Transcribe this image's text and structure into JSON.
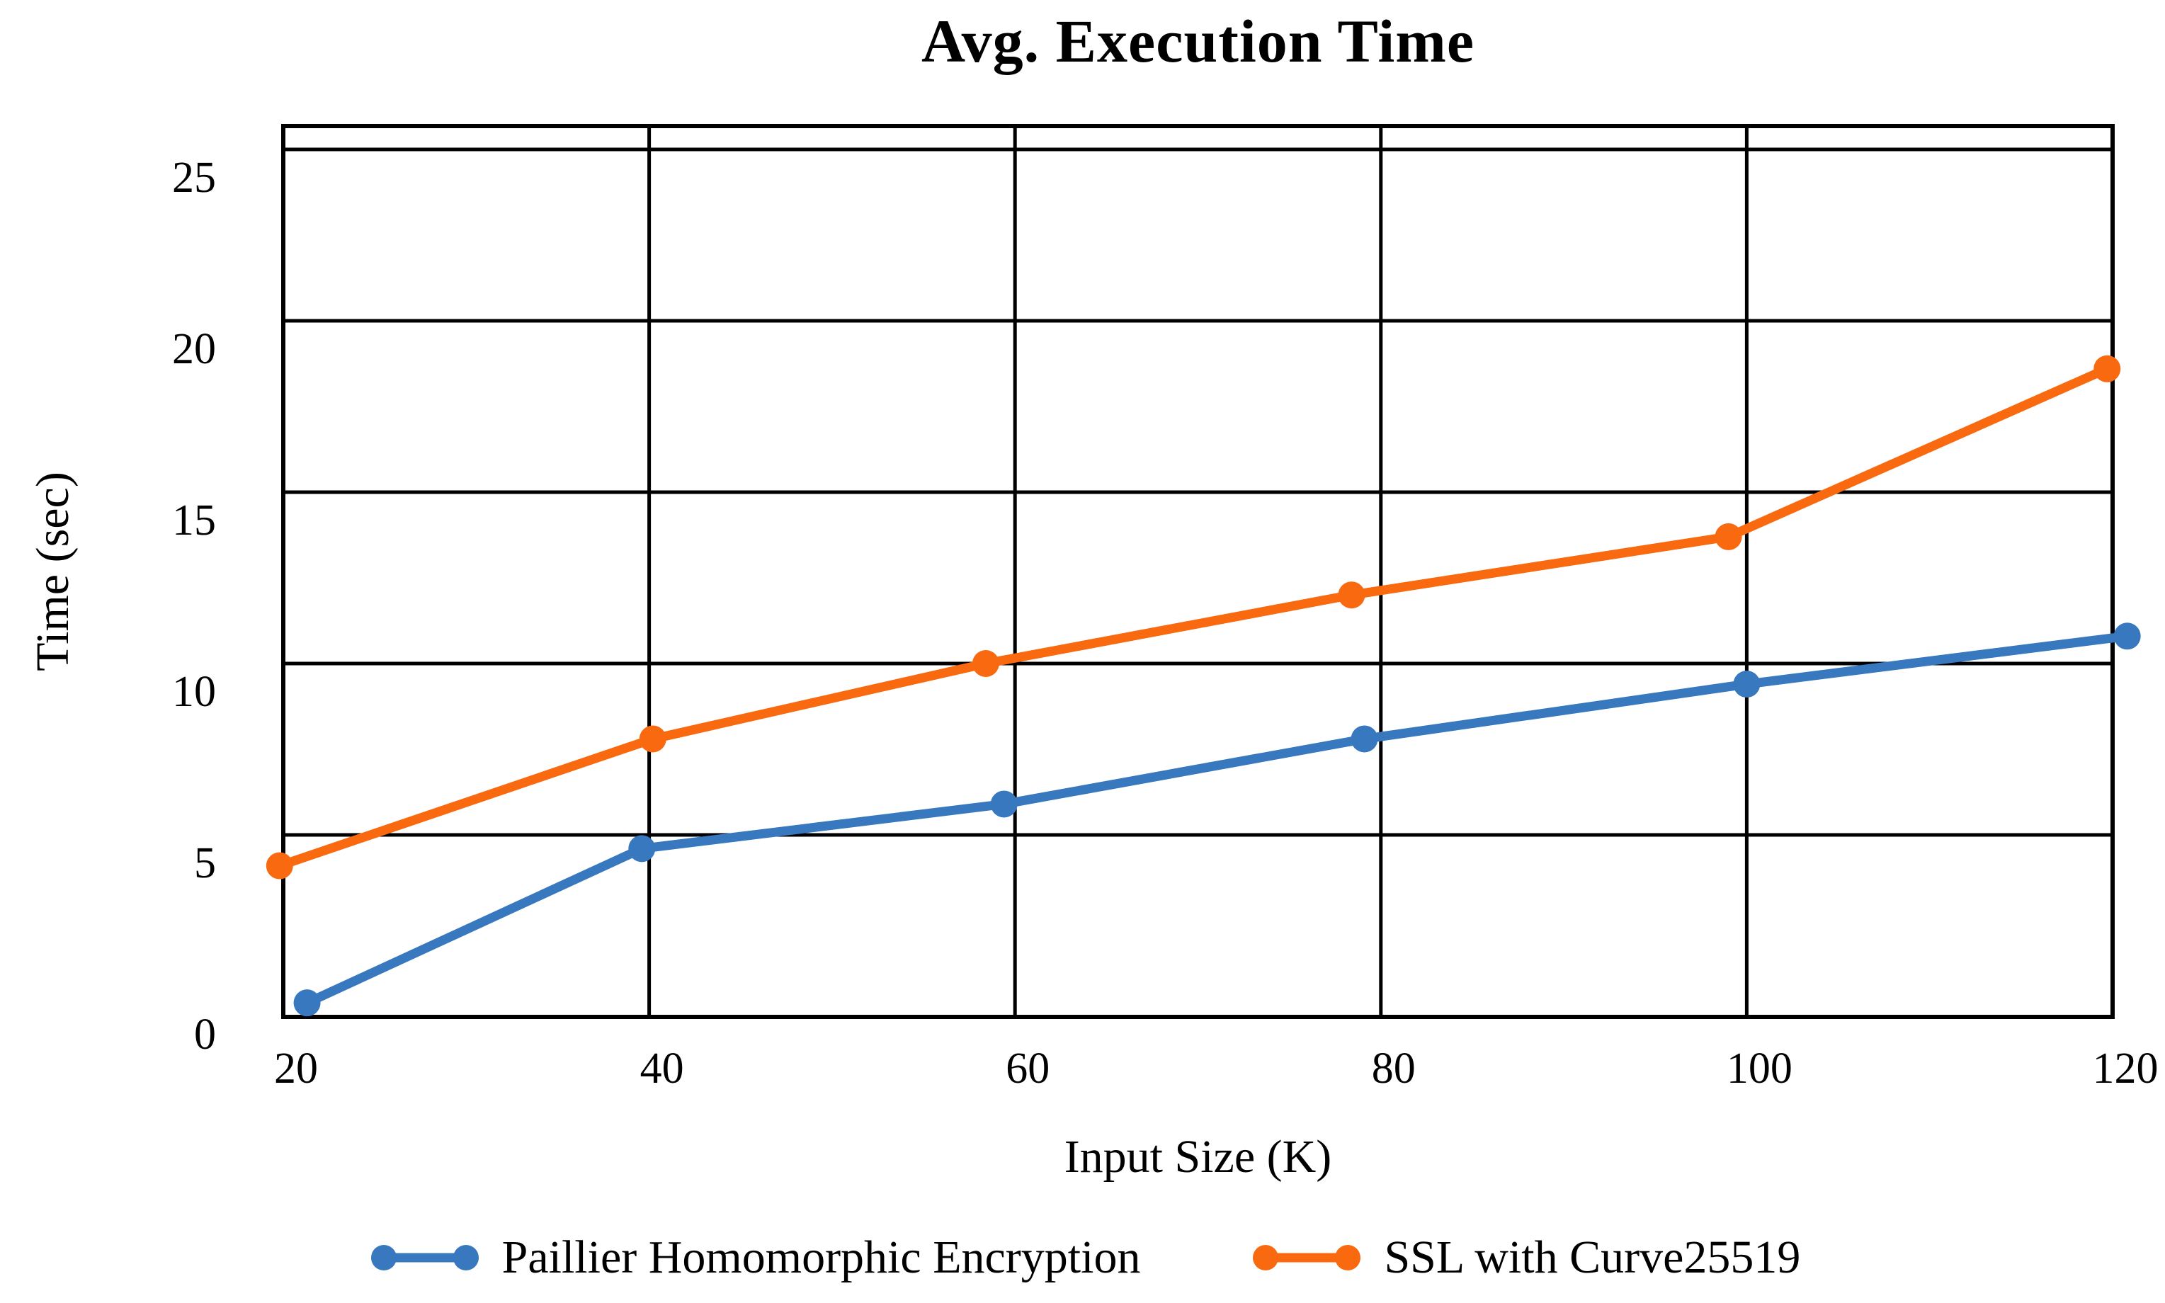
{
  "chart_data": {
    "type": "line",
    "title": "Avg. Execution Time",
    "xlabel": "Input Size (K)",
    "ylabel": "Time (sec)",
    "xlim": [
      20,
      120
    ],
    "ylim": [
      0,
      25
    ],
    "xticks": [
      20,
      40,
      60,
      80,
      100,
      120
    ],
    "yticks": [
      0,
      5,
      10,
      15,
      20,
      25
    ],
    "grid": true,
    "legend_position": "bottom-center",
    "background_color": "#ffffff",
    "axis_color": "#000000",
    "series": [
      {
        "name": "Paillier Homomorphic Encryption",
        "color": "#3778BE",
        "x": [
          21.3,
          39.6,
          59.4,
          79.1,
          100.0,
          120.8
        ],
        "y": [
          0.1,
          4.6,
          5.9,
          7.8,
          9.4,
          10.8
        ]
      },
      {
        "name": "SSL with Curve25519",
        "color": "#F9690F",
        "x": [
          19.8,
          40.2,
          58.4,
          78.4,
          99.0,
          119.7
        ],
        "y": [
          4.1,
          7.8,
          10.0,
          12.0,
          13.7,
          18.6
        ]
      }
    ]
  }
}
